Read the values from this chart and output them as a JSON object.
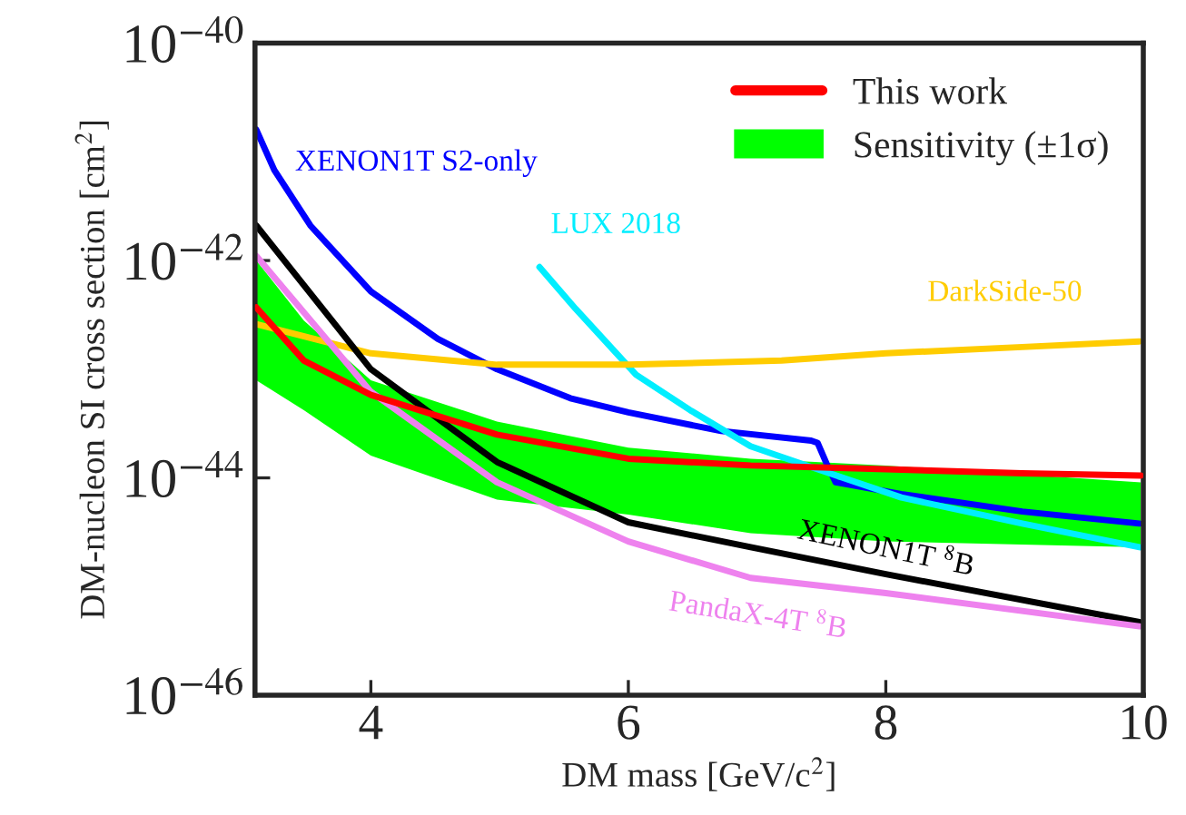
{
  "chart_data": {
    "type": "line",
    "xlabel": "DM mass [GeV/c$^{2}$]",
    "ylabel": "DM-nucleon SI cross section [cm$^{2}$]",
    "log": "y",
    "grid": false,
    "legend": "top right",
    "line_style": "solid",
    "marker": "none",
    "xlim": [
      3.1,
      10
    ],
    "ylim": [
      1e-46,
      1e-40
    ],
    "xticks": [
      4,
      6,
      8,
      10
    ],
    "yticks": [
      {
        "value": 1e-46,
        "label": "10$^{−46}$"
      },
      {
        "value": 1e-44,
        "label": "10$^{−44}$"
      },
      {
        "value": 1e-42,
        "label": "10$^{−42}$"
      },
      {
        "value": 1e-40,
        "label": "10$^{−40}$"
      }
    ],
    "series": [
      {
        "name": "This work",
        "color": "#ff0000",
        "x": [
          3.11,
          3.48,
          4,
          4.98,
          6,
          6.95,
          8,
          9.06,
          9.98
        ],
        "values": [
          3.7e-43,
          1.2e-43,
          5.8e-44,
          2.5e-44,
          1.5e-44,
          1.3e-44,
          1.2e-44,
          1.1e-44,
          1.05e-44
        ]
      },
      {
        "name": "Sensitivity (±1σ)",
        "color": "#00ff00",
        "type": "area",
        "x": [
          3.11,
          3.48,
          4,
          4.98,
          6,
          6.95,
          8,
          9.98
        ],
        "values": [
          null,
          null,
          null,
          null,
          null,
          null,
          null,
          null
        ],
        "lower": [
          7.9e-44,
          4.2e-44,
          1.6e-44,
          6.3e-45,
          4.6e-45,
          3.1e-45,
          2.6e-45,
          2.3e-45
        ],
        "upper": [
          1e-42,
          2.8e-43,
          7.9e-44,
          3.3e-44,
          1.9e-44,
          1.5e-44,
          1.3e-44,
          9.1e-45
        ]
      },
      {
        "name": "XENON1T S2-only",
        "color": "#0000ff",
        "x": [
          3.11,
          3.25,
          3.53,
          4,
          4.52,
          4.98,
          5.55,
          6,
          6.72,
          7.42,
          7.47,
          7.54,
          7.61,
          8.12,
          9.06,
          9.97
        ],
        "values": [
          1.6e-41,
          6.8e-42,
          2.1e-42,
          5.2e-43,
          1.9e-43,
          1e-43,
          5.4e-44,
          4e-44,
          2.7e-44,
          2.2e-44,
          2.1e-44,
          1.35e-44,
          9.1e-45,
          7.1e-45,
          4.9e-45,
          3.8e-45
        ]
      },
      {
        "name": "LUX 2018",
        "color": "#00eeff",
        "x": [
          5.31,
          5.59,
          6.06,
          6.48,
          6.95,
          7.47,
          8.12,
          9.06,
          9.97
        ],
        "values": [
          8.7e-43,
          3.6e-43,
          8.9e-44,
          4.2e-44,
          1.95e-44,
          1.2e-44,
          6.6e-45,
          3.8e-45,
          2.3e-45
        ]
      },
      {
        "name": "DarkSide-50",
        "color": "#ffcc00",
        "x": [
          3.11,
          4,
          4.98,
          6,
          7.19,
          8,
          9.06,
          9.97
        ],
        "values": [
          2.6e-43,
          1.4e-43,
          1.1e-43,
          1.1e-43,
          1.2e-43,
          1.4e-43,
          1.6e-43,
          1.8e-43
        ]
      },
      {
        "name": "XENON1T $^{8}$B",
        "color": "#000000",
        "x": [
          3.11,
          4,
          4.98,
          6,
          6.95,
          8,
          9.97
        ],
        "values": [
          2.1e-42,
          1e-43,
          1.4e-44,
          3.9e-45,
          2.3e-45,
          1.3e-45,
          4.7e-46
        ]
      },
      {
        "name": "PandaX-4T $^{8}$B",
        "color": "#ee82ee",
        "x": [
          3.11,
          4,
          4.98,
          6,
          6.95,
          8,
          9.97
        ],
        "values": [
          1.1e-42,
          6.2e-44,
          9.1e-45,
          2.6e-45,
          1.2e-45,
          8.7e-46,
          4.3e-46
        ]
      }
    ]
  }
}
